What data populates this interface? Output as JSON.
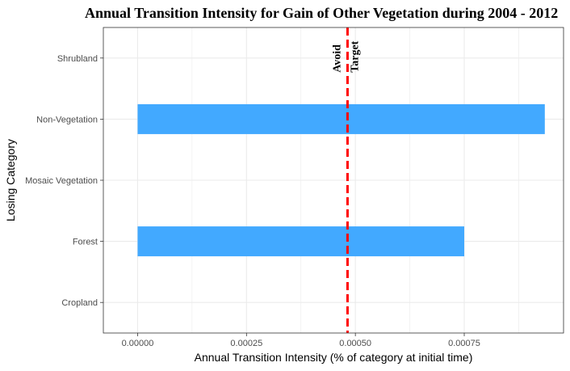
{
  "chart_data": {
    "type": "bar",
    "orientation": "horizontal",
    "title": "Annual Transition Intensity for Gain of  Other Vegetation during 2004 - 2012",
    "xlabel": "Annual Transition Intensity (% of category at initial time)",
    "ylabel": "Losing Category",
    "categories": [
      "Cropland",
      "Forest",
      "Mosaic Vegetation",
      "Non-Vegetation",
      "Shrubland"
    ],
    "values": [
      0,
      0.00075,
      0,
      0.000935,
      0
    ],
    "xlim": [
      -7.87e-05,
      0.000978
    ],
    "x_ticks": [
      0,
      0.00025,
      0.0005,
      0.00075
    ],
    "x_tick_labels": [
      "0.00000",
      "0.00025",
      "0.00050",
      "0.00075"
    ],
    "grid": true,
    "bar_color": "#42a9ff",
    "reference_line": {
      "value": 0.000482,
      "color": "#ff0000",
      "style": "dashed",
      "label_left": "Avoid",
      "label_right": "Target"
    }
  }
}
